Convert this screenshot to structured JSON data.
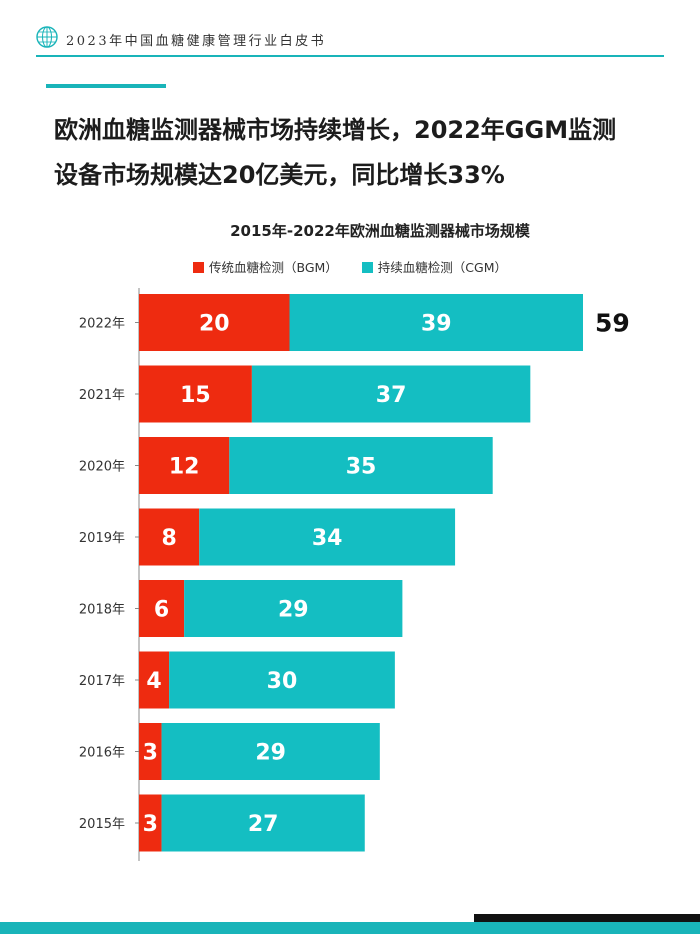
{
  "report": {
    "title": "2023年中国血糖健康管理行业白皮书"
  },
  "headline": {
    "line1": "欧洲血糖监测器械市场持续增长，2022年GGM监测",
    "line2": "设备市场规模达20亿美元，同比增长33%"
  },
  "colors": {
    "bgm": "#ee2b10",
    "cgm": "#14bec2",
    "accent": "#19b4b9"
  },
  "chart_data": {
    "type": "bar",
    "orientation": "horizontal",
    "stacked": true,
    "title": "2015年-2022年欧洲血糖监测器械市场规模",
    "categories": [
      "2022年",
      "2021年",
      "2020年",
      "2019年",
      "2018年",
      "2017年",
      "2016年",
      "2015年"
    ],
    "series": [
      {
        "name": "传统血糖检测（BGM）",
        "values": [
          20,
          15,
          12,
          8,
          6,
          4,
          3,
          3
        ]
      },
      {
        "name": "持续血糖检测（CGM）",
        "values": [
          39,
          37,
          35,
          34,
          29,
          30,
          29,
          27
        ]
      }
    ],
    "totals_label": {
      "2022年": "59"
    },
    "xlim": [
      0,
      59
    ],
    "legend": "top-center",
    "grid": false
  }
}
